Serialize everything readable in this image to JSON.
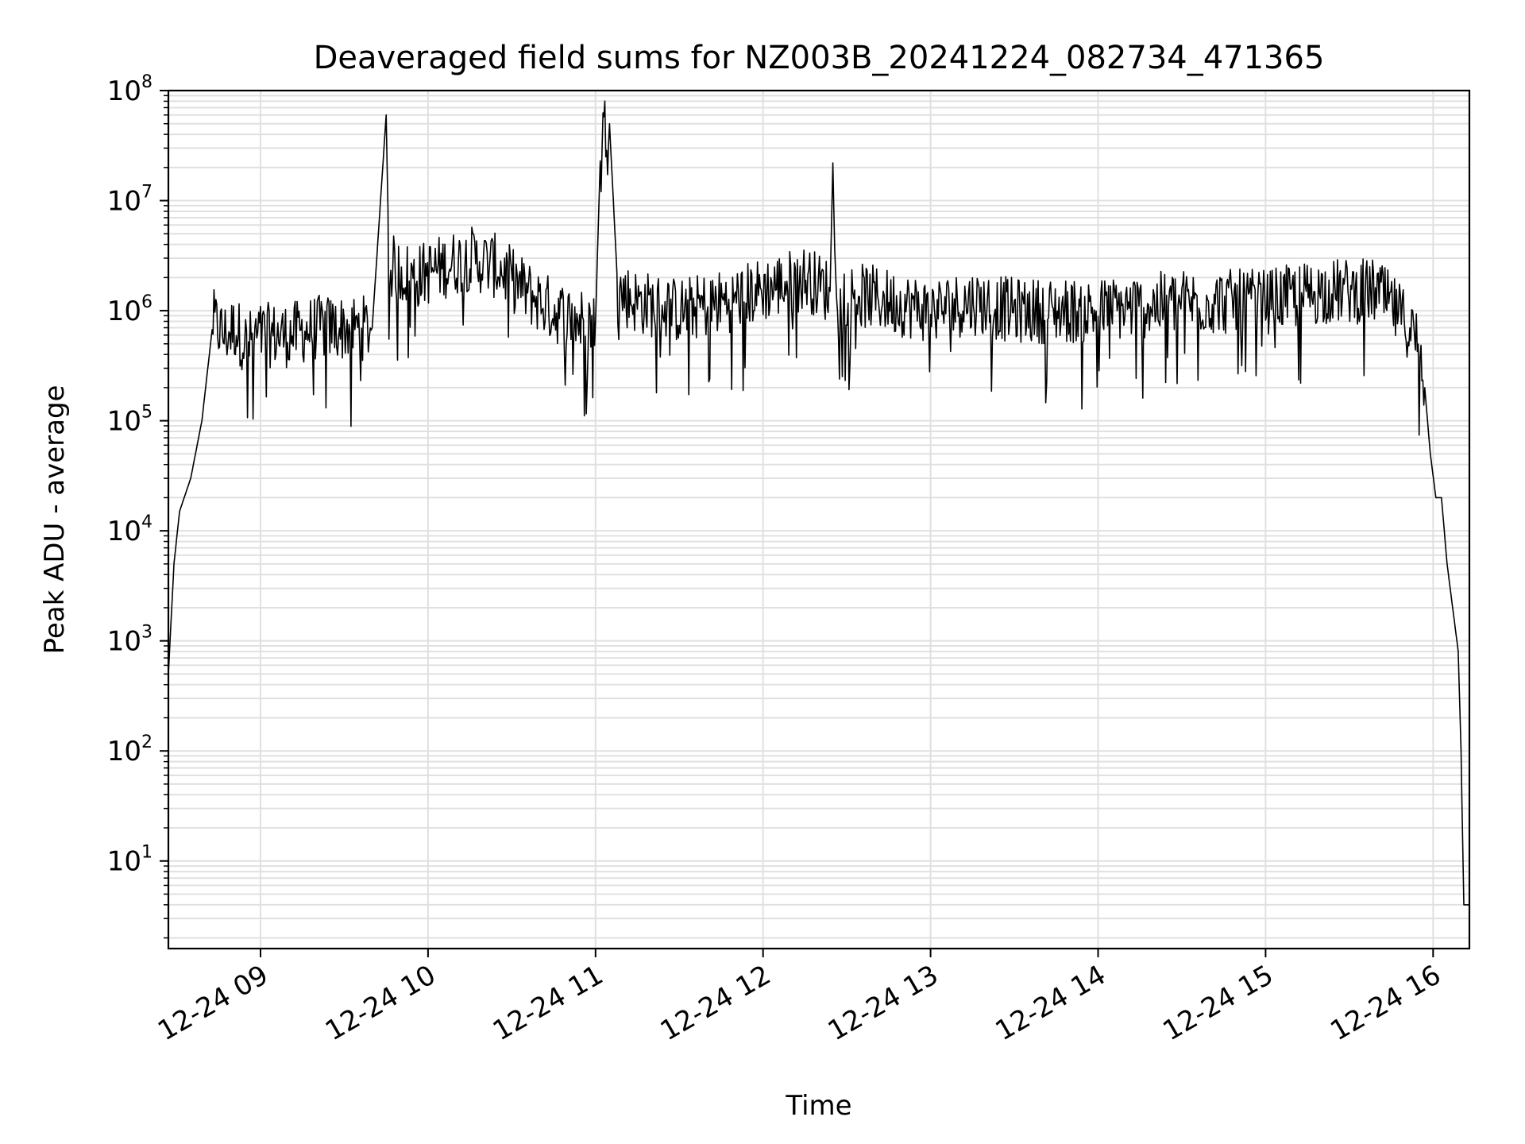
{
  "chart_data": {
    "type": "line",
    "title": "Deaveraged field sums for NZ003B_20241224_082734_471365",
    "xlabel": "Time",
    "ylabel": "Peak ADU - average",
    "yscale": "log",
    "ylim": [
      1.6,
      100000000
    ],
    "xlim": [
      "2024-12-24 08:27",
      "2024-12-24 16:13"
    ],
    "grid": true,
    "line_color": "#000000",
    "grid_color": "#e0e0e0",
    "x_ticks": [
      {
        "label": "12-24 09",
        "t": "2024-12-24 09:00"
      },
      {
        "label": "12-24 10",
        "t": "2024-12-24 10:00"
      },
      {
        "label": "12-24 11",
        "t": "2024-12-24 11:00"
      },
      {
        "label": "12-24 12",
        "t": "2024-12-24 12:00"
      },
      {
        "label": "12-24 13",
        "t": "2024-12-24 13:00"
      },
      {
        "label": "12-24 14",
        "t": "2024-12-24 14:00"
      },
      {
        "label": "12-24 15",
        "t": "2024-12-24 15:00"
      },
      {
        "label": "12-24 16",
        "t": "2024-12-24 16:00"
      }
    ],
    "y_ticks": [
      {
        "base": "10",
        "exp": "1",
        "value": 10
      },
      {
        "base": "10",
        "exp": "2",
        "value": 100
      },
      {
        "base": "10",
        "exp": "3",
        "value": 1000
      },
      {
        "base": "10",
        "exp": "4",
        "value": 10000
      },
      {
        "base": "10",
        "exp": "5",
        "value": 100000
      },
      {
        "base": "10",
        "exp": "6",
        "value": 1000000
      },
      {
        "base": "10",
        "exp": "7",
        "value": 10000000
      },
      {
        "base": "10",
        "exp": "8",
        "value": 100000000
      }
    ],
    "series": [
      {
        "x": [
          "2024-12-24 08:27",
          "2024-12-24 08:29",
          "2024-12-24 08:31",
          "2024-12-24 08:35",
          "2024-12-24 08:39",
          "2024-12-24 08:43",
          "2024-12-24 08:47",
          "2024-12-24 08:51",
          "2024-12-24 08:55",
          "2024-12-24 09:00",
          "2024-12-24 09:10",
          "2024-12-24 09:20",
          "2024-12-24 09:30",
          "2024-12-24 09:40",
          "2024-12-24 09:45",
          "2024-12-24 09:46",
          "2024-12-24 09:47",
          "2024-12-24 09:55",
          "2024-12-24 10:05",
          "2024-12-24 10:15",
          "2024-12-24 10:25",
          "2024-12-24 10:35",
          "2024-12-24 10:45",
          "2024-12-24 10:55",
          "2024-12-24 11:00",
          "2024-12-24 11:02",
          "2024-12-24 11:05",
          "2024-12-24 11:08",
          "2024-12-24 11:15",
          "2024-12-24 11:30",
          "2024-12-24 11:45",
          "2024-12-24 11:58",
          "2024-12-24 12:15",
          "2024-12-24 12:24",
          "2024-12-24 12:25",
          "2024-12-24 12:26",
          "2024-12-24 12:40",
          "2024-12-24 13:00",
          "2024-12-24 13:15",
          "2024-12-24 13:30",
          "2024-12-24 14:00",
          "2024-12-24 14:30",
          "2024-12-24 15:00",
          "2024-12-24 15:20",
          "2024-12-24 15:40",
          "2024-12-24 15:50",
          "2024-12-24 15:55",
          "2024-12-24 15:57",
          "2024-12-24 15:59",
          "2024-12-24 16:01",
          "2024-12-24 16:03",
          "2024-12-24 16:05",
          "2024-12-24 16:07",
          "2024-12-24 16:09",
          "2024-12-24 16:10",
          "2024-12-24 16:11",
          "2024-12-24 16:13"
        ],
        "y": [
          500,
          5000,
          15000,
          30000,
          100000,
          800000,
          600000,
          700000,
          500000,
          600000,
          600000,
          700000,
          700000,
          700000,
          60000000,
          3000000,
          2500000,
          2000000,
          2500000,
          3000000,
          2500000,
          1500000,
          1000000,
          800000,
          800000,
          45000000,
          50000000,
          1500000,
          1200000,
          1000000,
          1200000,
          1500000,
          2000000,
          1500000,
          22000000,
          1500000,
          1300000,
          1000000,
          1200000,
          1000000,
          1000000,
          1200000,
          1200000,
          1500000,
          1500000,
          800000,
          500000,
          200000,
          50000,
          20000,
          20000,
          5000,
          2000,
          800,
          100,
          4,
          4
        ]
      }
    ]
  }
}
